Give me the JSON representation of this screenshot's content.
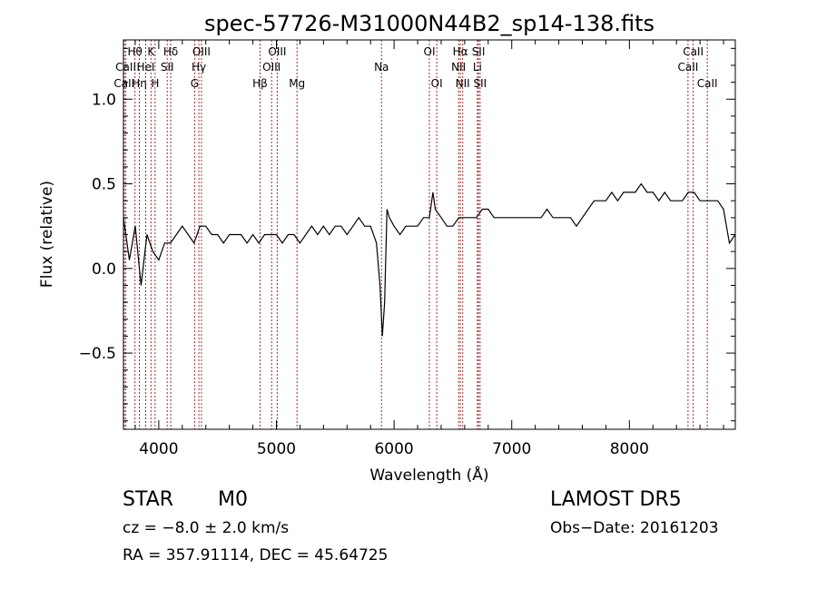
{
  "chart_data": {
    "type": "line",
    "title": "spec-57726-M31000N44B2_sp14-138.fits",
    "xlabel": "Wavelength (Å)",
    "ylabel": "Flux (relative)",
    "xlim": [
      3700,
      8900
    ],
    "ylim": [
      -0.95,
      1.35
    ],
    "xticks": [
      4000,
      5000,
      6000,
      7000,
      8000
    ],
    "xtick_labels": [
      "4000",
      "5000",
      "6000",
      "7000",
      "8000"
    ],
    "yticks": [
      -0.5,
      0.0,
      0.5,
      1.0
    ],
    "ytick_labels": [
      "−0.5",
      "0.0",
      "0.5",
      "1.0"
    ],
    "grid": false,
    "series": [
      {
        "x": [
          3700,
          3750,
          3800,
          3850,
          3900,
          3950,
          4000,
          4050,
          4100,
          4150,
          4200,
          4250,
          4300,
          4350,
          4400,
          4450,
          4500,
          4550,
          4600,
          4650,
          4700,
          4750,
          4800,
          4850,
          4900,
          4950,
          5000,
          5050,
          5100,
          5150,
          5200,
          5250,
          5300,
          5350,
          5400,
          5450,
          5500,
          5550,
          5600,
          5650,
          5700,
          5750,
          5800,
          5850,
          5880,
          5900,
          5920,
          5940,
          5960,
          6000,
          6050,
          6100,
          6150,
          6200,
          6250,
          6300,
          6330,
          6350,
          6400,
          6450,
          6500,
          6550,
          6600,
          6650,
          6700,
          6750,
          6800,
          6850,
          6900,
          6950,
          7000,
          7050,
          7100,
          7150,
          7200,
          7250,
          7300,
          7350,
          7400,
          7450,
          7500,
          7550,
          7600,
          7650,
          7700,
          7750,
          7800,
          7850,
          7900,
          7950,
          8000,
          8050,
          8100,
          8150,
          8200,
          8250,
          8300,
          8350,
          8400,
          8450,
          8500,
          8550,
          8600,
          8650,
          8700,
          8750,
          8800,
          8850,
          8900
        ],
        "y": [
          0.3,
          0.05,
          0.25,
          -0.1,
          0.2,
          0.1,
          0.05,
          0.15,
          0.15,
          0.2,
          0.25,
          0.2,
          0.15,
          0.25,
          0.25,
          0.2,
          0.2,
          0.15,
          0.2,
          0.2,
          0.2,
          0.15,
          0.2,
          0.15,
          0.2,
          0.2,
          0.2,
          0.15,
          0.2,
          0.2,
          0.15,
          0.2,
          0.25,
          0.2,
          0.25,
          0.2,
          0.25,
          0.25,
          0.2,
          0.25,
          0.3,
          0.25,
          0.25,
          0.15,
          -0.1,
          -0.4,
          -0.2,
          0.35,
          0.3,
          0.25,
          0.2,
          0.25,
          0.25,
          0.25,
          0.3,
          0.3,
          0.45,
          0.35,
          0.3,
          0.25,
          0.25,
          0.3,
          0.3,
          0.3,
          0.3,
          0.35,
          0.35,
          0.3,
          0.3,
          0.3,
          0.3,
          0.3,
          0.3,
          0.3,
          0.3,
          0.3,
          0.35,
          0.3,
          0.3,
          0.3,
          0.3,
          0.25,
          0.3,
          0.35,
          0.4,
          0.4,
          0.4,
          0.45,
          0.4,
          0.45,
          0.45,
          0.45,
          0.5,
          0.45,
          0.45,
          0.4,
          0.45,
          0.4,
          0.4,
          0.4,
          0.45,
          0.45,
          0.4,
          0.4,
          0.4,
          0.4,
          0.35,
          0.15,
          0.2
        ]
      }
    ],
    "line_labels": [
      {
        "label": "Hθ",
        "x": 3798,
        "row": 0
      },
      {
        "label": "K",
        "x": 3934,
        "row": 0
      },
      {
        "label": "Hδ",
        "x": 4102,
        "row": 0
      },
      {
        "label": "OIII",
        "x": 4363,
        "row": 0
      },
      {
        "label": "OIII",
        "x": 5007,
        "row": 0
      },
      {
        "label": "OI",
        "x": 6300,
        "row": 0
      },
      {
        "label": "Hα",
        "x": 6563,
        "row": 0
      },
      {
        "label": "SII",
        "x": 6717,
        "row": 0
      },
      {
        "label": "CaII",
        "x": 8542,
        "row": 0
      },
      {
        "label": "CaII",
        "x": 3720,
        "row": 1
      },
      {
        "label": "HeI",
        "x": 3889,
        "row": 1
      },
      {
        "label": "SII",
        "x": 4072,
        "row": 1
      },
      {
        "label": "Hγ",
        "x": 4341,
        "row": 1
      },
      {
        "label": "OIII",
        "x": 4959,
        "row": 1
      },
      {
        "label": "Na",
        "x": 5893,
        "row": 1
      },
      {
        "label": "NII",
        "x": 6548,
        "row": 1
      },
      {
        "label": "Li",
        "x": 6708,
        "row": 1
      },
      {
        "label": "CaII",
        "x": 8498,
        "row": 1
      },
      {
        "label": "CaII",
        "x": 3706,
        "row": 2
      },
      {
        "label": "Hη",
        "x": 3835,
        "row": 2
      },
      {
        "label": "H",
        "x": 3969,
        "row": 2
      },
      {
        "label": "G",
        "x": 4305,
        "row": 2
      },
      {
        "label": "Hβ",
        "x": 4861,
        "row": 2
      },
      {
        "label": "Mg",
        "x": 5175,
        "row": 2
      },
      {
        "label": "OI",
        "x": 6363,
        "row": 2
      },
      {
        "label": "NII",
        "x": 6583,
        "row": 2
      },
      {
        "label": "SII",
        "x": 6731,
        "row": 2
      },
      {
        "label": "CaII",
        "x": 8662,
        "row": 2
      }
    ]
  },
  "info": {
    "object_class": "STAR",
    "subclass": "M0",
    "survey": "LAMOST DR5",
    "cz": "cz = −8.0 ± 2.0 km/s",
    "obs_date": "Obs−Date: 20161203",
    "coords": "RA = 357.91114, DEC =  45.64725"
  },
  "colors": {
    "axis": "#000000",
    "spectrum": "#000000",
    "line_marker": "#a52a2a"
  }
}
